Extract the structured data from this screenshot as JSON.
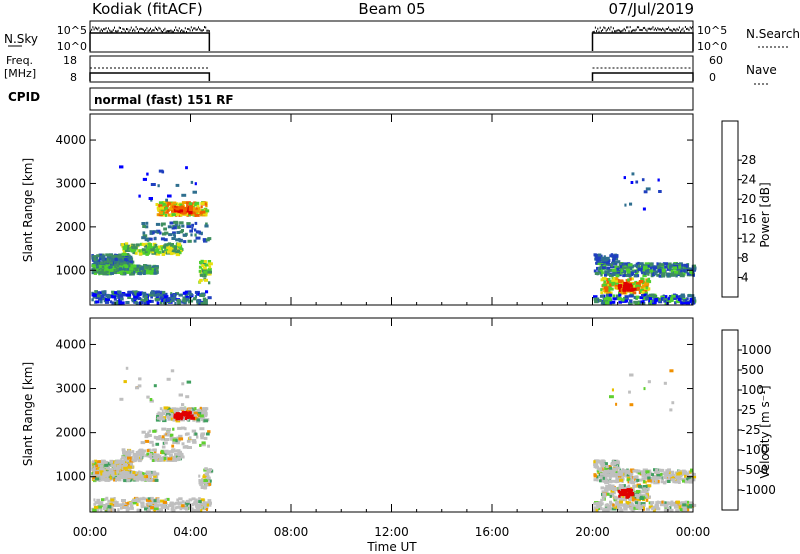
{
  "header": {
    "title_left": "Kodiak (fitACF)",
    "title_center": "Beam 05",
    "title_right": "07/Jul/2019"
  },
  "top_panels": {
    "nsky_label": "N.Sky",
    "nsky_ticks": [
      "10^5",
      "10^0"
    ],
    "nsearch_label": "N.Search",
    "nsearch_ticks": [
      "10^5",
      "10^0"
    ],
    "freq_label": "Freq.",
    "freq_unit": "[MHz]",
    "freq_ticks": [
      "18",
      "8"
    ],
    "nave_label": "Nave",
    "nave_ticks": [
      "60",
      "0"
    ],
    "cpid_label": "CPID",
    "cpid_text": "normal (fast) 151 RF"
  },
  "chart_data": [
    {
      "type": "heatmap",
      "name": "power",
      "ylabel": "Slant Range [km]",
      "xlabel": "",
      "x_ticks": [
        "00:00",
        "04:00",
        "08:00",
        "12:00",
        "16:00",
        "20:00",
        "00:00"
      ],
      "y_ticks": [
        1000,
        2000,
        3000,
        4000
      ],
      "ylim": [
        200,
        4600
      ],
      "xlim_hours": [
        0,
        24
      ],
      "colorbar_label": "Power [dB]",
      "colorbar_ticks": [
        4,
        8,
        12,
        16,
        20,
        24,
        28
      ],
      "colorbar_range": [
        0,
        32
      ],
      "data_intervals_hours": [
        [
          0,
          4.75
        ],
        [
          20,
          24
        ]
      ]
    },
    {
      "type": "heatmap",
      "name": "velocity",
      "ylabel": "Slant Range [km]",
      "xlabel": "Time UT",
      "x_ticks": [
        "00:00",
        "04:00",
        "08:00",
        "12:00",
        "16:00",
        "20:00",
        "00:00"
      ],
      "y_ticks": [
        1000,
        2000,
        3000,
        4000
      ],
      "ylim": [
        200,
        4600
      ],
      "xlim_hours": [
        0,
        24
      ],
      "colorbar_label": "Velocity [m s⁻¹]",
      "colorbar_ticks": [
        "1000",
        "500",
        "100",
        "25",
        "-25",
        "-100",
        "-500",
        "-1000"
      ],
      "data_intervals_hours": [
        [
          0,
          4.75
        ],
        [
          20,
          24
        ]
      ]
    }
  ],
  "colors": {
    "power_scale": [
      "#0000ff",
      "#1f3fbf",
      "#2f6f8f",
      "#3f8f5f",
      "#4fcf2f",
      "#e8e010",
      "#f0a000",
      "#f06000",
      "#e00000"
    ],
    "velocity_scale": [
      "#1f2fc8",
      "#2f6fb0",
      "#3f9f5f",
      "#5fcf2f",
      "#bfbfbf",
      "#e8c000",
      "#f09000",
      "#f05000",
      "#e00000"
    ]
  }
}
